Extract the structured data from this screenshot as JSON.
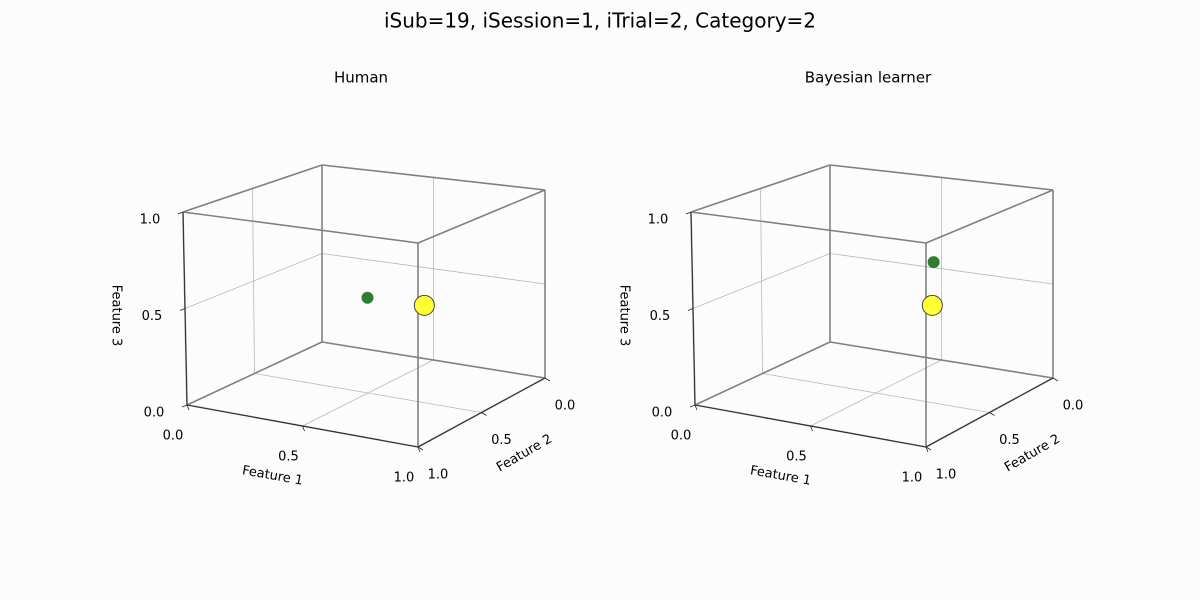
{
  "title": "iSub=19, iSession=1, iTrial=2, Category=2",
  "chart_data": [
    {
      "type": "scatter3d",
      "title": "Human",
      "xlabel": "Feature 1",
      "ylabel": "Feature 2",
      "zlabel": "Feature 3",
      "xlim": [
        0,
        1
      ],
      "ylim": [
        0,
        1
      ],
      "zlim": [
        0,
        1
      ],
      "xticks": [
        {
          "value": 0,
          "label": "0.0"
        },
        {
          "value": 0.5,
          "label": "0.5"
        },
        {
          "value": 1,
          "label": "1.0"
        }
      ],
      "yticks": [
        {
          "value": 0,
          "label": "0.0"
        },
        {
          "value": 0.5,
          "label": "0.5"
        },
        {
          "value": 1,
          "label": "1.0"
        }
      ],
      "zticks": [
        {
          "value": 0,
          "label": "0.0"
        },
        {
          "value": 0.5,
          "label": "0.5"
        },
        {
          "value": 1,
          "label": "1.0"
        }
      ],
      "grid": true,
      "series": [
        {
          "color": "#2e7d32",
          "x": [
            0.5
          ],
          "y": [
            0.5
          ],
          "z": [
            0.5
          ]
        },
        {
          "color": "#ffff33",
          "x": [
            1
          ],
          "y": [
            0.95
          ],
          "z": [
            0.68
          ]
        }
      ]
    },
    {
      "type": "scatter3d",
      "title": "Bayesian learner",
      "xlabel": "Feature 1",
      "ylabel": "Feature 2",
      "zlabel": "Feature 3",
      "xlim": [
        0,
        1
      ],
      "ylim": [
        0,
        1
      ],
      "zlim": [
        0,
        1
      ],
      "xticks": [
        {
          "value": 0,
          "label": "0.0"
        },
        {
          "value": 0.5,
          "label": "0.5"
        },
        {
          "value": 1,
          "label": "1.0"
        }
      ],
      "yticks": [
        {
          "value": 0,
          "label": "0.0"
        },
        {
          "value": 0.5,
          "label": "0.5"
        },
        {
          "value": 1,
          "label": "1.0"
        }
      ],
      "zticks": [
        {
          "value": 0,
          "label": "0.0"
        },
        {
          "value": 0.5,
          "label": "0.5"
        },
        {
          "value": 1,
          "label": "1.0"
        }
      ],
      "grid": true,
      "series": [
        {
          "color": "#2e7d32",
          "x": [
            1
          ],
          "y": [
            0.94
          ],
          "z": [
            0.89
          ]
        },
        {
          "color": "#ffff33",
          "x": [
            1
          ],
          "y": [
            0.95
          ],
          "z": [
            0.68
          ]
        }
      ]
    }
  ]
}
